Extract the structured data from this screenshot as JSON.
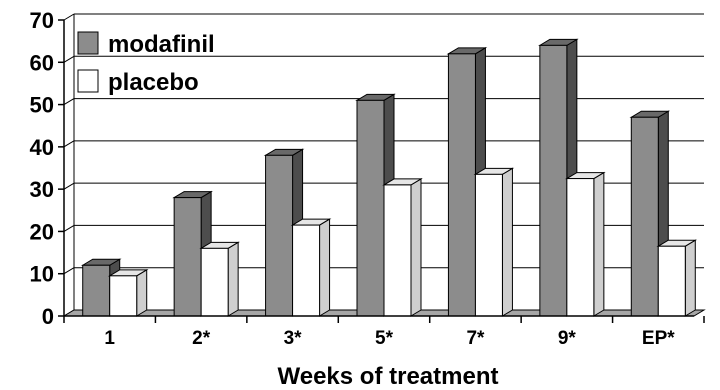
{
  "chart_data": {
    "type": "bar",
    "categories": [
      "1",
      "2*",
      "3*",
      "5*",
      "7*",
      "9*",
      "EP*"
    ],
    "series": [
      {
        "name": "modafinil",
        "values": [
          12,
          28,
          38,
          51,
          62,
          64,
          47
        ],
        "color": "#8c8c8c"
      },
      {
        "name": "placebo",
        "values": [
          9.5,
          16,
          21.5,
          31,
          33.5,
          32.5,
          16.5
        ],
        "color": "#ffffff"
      }
    ],
    "title": "",
    "xlabel": "Weeks of treatment",
    "ylabel": "",
    "ylim": [
      0,
      70
    ],
    "yticks": [
      0,
      10,
      20,
      30,
      40,
      50,
      60,
      70
    ],
    "grid": true,
    "legend": "top-left",
    "style": "3d-bar"
  }
}
